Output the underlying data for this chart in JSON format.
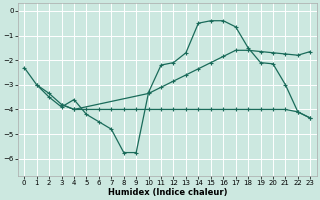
{
  "xlabel": "Humidex (Indice chaleur)",
  "background_color": "#cce8e0",
  "grid_color": "#ffffff",
  "line_color": "#1a6b5a",
  "xlim": [
    -0.5,
    23.5
  ],
  "ylim": [
    -6.7,
    0.3
  ],
  "xticks": [
    0,
    1,
    2,
    3,
    4,
    5,
    6,
    7,
    8,
    9,
    10,
    11,
    12,
    13,
    14,
    15,
    16,
    17,
    18,
    19,
    20,
    21,
    22,
    23
  ],
  "yticks": [
    0,
    -1,
    -2,
    -3,
    -4,
    -5,
    -6
  ],
  "line1_x": [
    0,
    1,
    2,
    3,
    4,
    5,
    6,
    7,
    8,
    9,
    10,
    11,
    12,
    13,
    14,
    15,
    16,
    17,
    18,
    19,
    20,
    21,
    22,
    23
  ],
  "line1_y": [
    -2.3,
    -3.0,
    -3.5,
    -3.9,
    -3.6,
    -4.2,
    -4.5,
    -4.8,
    -5.75,
    -5.75,
    -3.3,
    -2.2,
    -2.1,
    -1.7,
    -0.5,
    -0.4,
    -0.4,
    -0.65,
    -1.5,
    -2.1,
    -2.15,
    -3.0,
    -4.1,
    -4.35
  ],
  "line2_x": [
    1,
    2,
    3,
    4,
    10,
    11,
    12,
    13,
    14,
    15,
    16,
    17,
    18,
    19,
    20,
    21,
    22,
    23
  ],
  "line2_y": [
    -3.0,
    -3.35,
    -3.8,
    -4.0,
    -3.35,
    -3.1,
    -2.85,
    -2.6,
    -2.35,
    -2.1,
    -1.85,
    -1.6,
    -1.6,
    -1.65,
    -1.7,
    -1.75,
    -1.8,
    -1.65
  ],
  "line3_x": [
    3,
    4,
    5,
    6,
    7,
    8,
    9,
    10,
    11,
    12,
    13,
    14,
    15,
    16,
    17,
    18,
    19,
    20,
    21,
    22,
    23
  ],
  "line3_y": [
    -3.8,
    -4.0,
    -4.0,
    -4.0,
    -4.0,
    -4.0,
    -4.0,
    -4.0,
    -4.0,
    -4.0,
    -4.0,
    -4.0,
    -4.0,
    -4.0,
    -4.0,
    -4.0,
    -4.0,
    -4.0,
    -4.0,
    -4.1,
    -4.35
  ]
}
